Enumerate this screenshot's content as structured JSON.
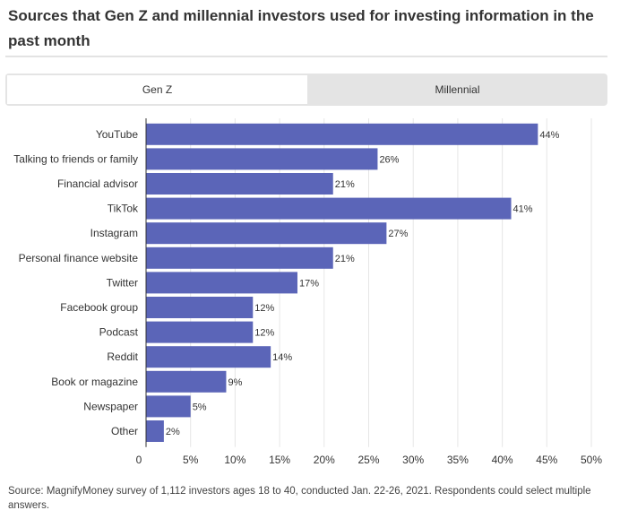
{
  "header": {
    "title": "Sources that Gen Z and millennial investors used for investing information in the past month"
  },
  "tabs": [
    {
      "label": "Gen Z",
      "active": true
    },
    {
      "label": "Millennial",
      "active": false
    }
  ],
  "colors": {
    "bar": "#5b65b8",
    "grid": "#e6e6e6",
    "axis": "#333333"
  },
  "chart_data": {
    "type": "bar",
    "orientation": "horizontal",
    "categories": [
      "YouTube",
      "Talking to friends or family",
      "Financial advisor",
      "TikTok",
      "Instagram",
      "Personal finance website",
      "Twitter",
      "Facebook group",
      "Podcast",
      "Reddit",
      "Book or magazine",
      "Newspaper",
      "Other"
    ],
    "values": [
      44,
      26,
      21,
      41,
      27,
      21,
      17,
      12,
      12,
      14,
      9,
      5,
      2
    ],
    "value_labels": [
      "44%",
      "26%",
      "21%",
      "41%",
      "27%",
      "21%",
      "17%",
      "12%",
      "12%",
      "14%",
      "9%",
      "5%",
      "2%"
    ],
    "xlim": [
      0,
      50
    ],
    "xticks": [
      0,
      5,
      10,
      15,
      20,
      25,
      30,
      35,
      40,
      45,
      50
    ],
    "xtick_labels": [
      "0",
      "5%",
      "10%",
      "15%",
      "20%",
      "25%",
      "30%",
      "35%",
      "40%",
      "45%",
      "50%"
    ],
    "grid": true
  },
  "footer": {
    "source": "Source: MagnifyMoney survey of 1,112 investors ages 18 to 40, conducted Jan. 22-26, 2021. Respondents could select multiple answers."
  }
}
